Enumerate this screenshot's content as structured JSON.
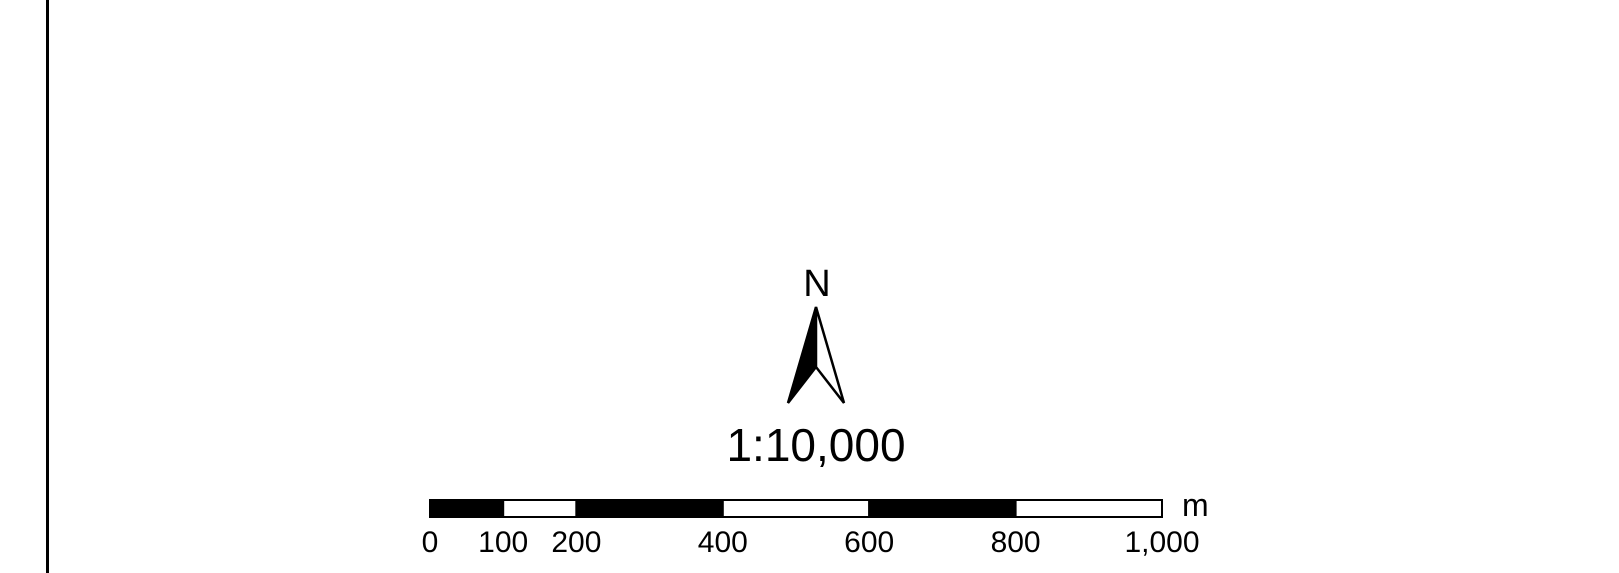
{
  "map": {
    "north_label": "N",
    "scale_text": "1:10,000",
    "scalebar": {
      "unit": "m",
      "max": 1000,
      "breaks": [
        0,
        100,
        200,
        400,
        600,
        800,
        1000
      ],
      "labels": [
        "0",
        "100",
        "200",
        "400",
        "600",
        "800",
        "1,000"
      ]
    },
    "colors": {
      "ink": "#000000",
      "paper": "#ffffff"
    }
  }
}
